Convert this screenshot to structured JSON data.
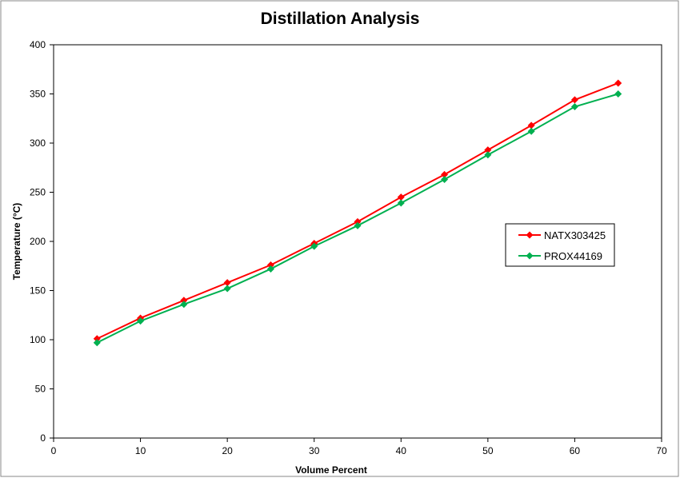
{
  "chart_data": {
    "type": "line",
    "title": "Distillation Analysis",
    "xlabel": "Volume Percent",
    "ylabel": "Temperature (°C)",
    "xlim": [
      0,
      70
    ],
    "ylim": [
      0,
      400
    ],
    "xticks": [
      0,
      10,
      20,
      30,
      40,
      50,
      60,
      70
    ],
    "yticks": [
      0,
      50,
      100,
      150,
      200,
      250,
      300,
      350,
      400
    ],
    "grid": false,
    "legend_position": "right",
    "x": [
      5,
      10,
      15,
      20,
      25,
      30,
      35,
      40,
      45,
      50,
      55,
      60,
      65
    ],
    "series": [
      {
        "name": "NATX303425",
        "color": "#ff0000",
        "marker": "diamond",
        "values": [
          101,
          122,
          140,
          158,
          176,
          198,
          220,
          245,
          268,
          293,
          318,
          344,
          361
        ]
      },
      {
        "name": "PROX44169",
        "color": "#00b050",
        "marker": "diamond",
        "values": [
          97,
          119,
          136,
          152,
          172,
          195,
          216,
          239,
          263,
          288,
          312,
          337,
          350
        ]
      }
    ]
  }
}
